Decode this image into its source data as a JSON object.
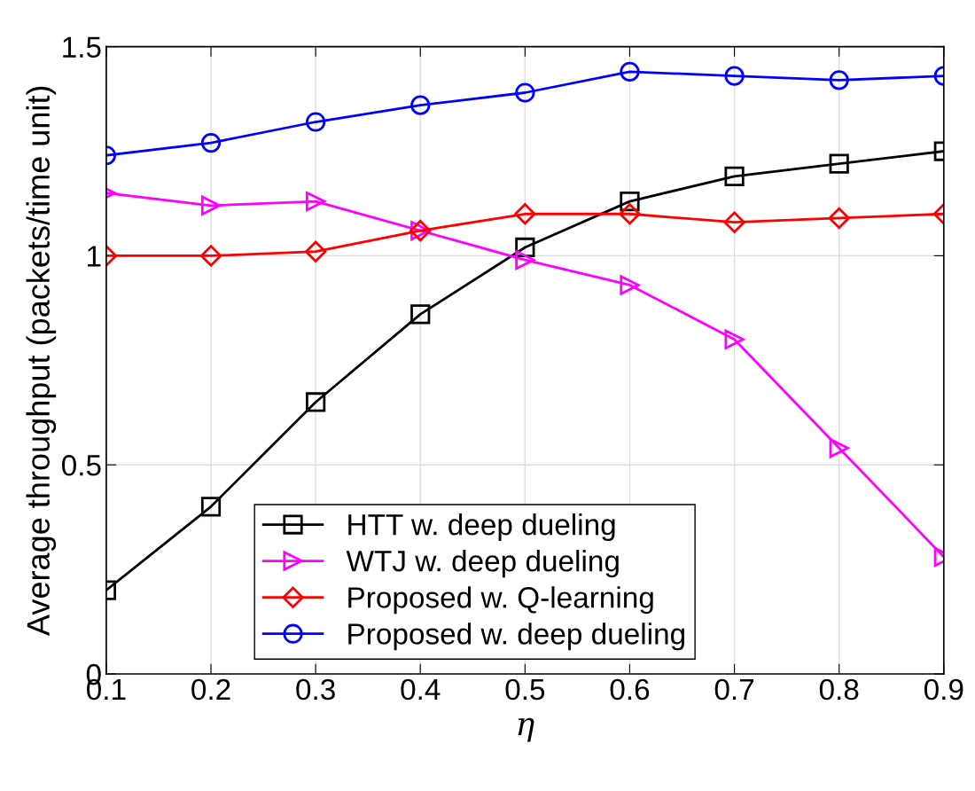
{
  "chart_data": {
    "type": "line",
    "xlabel": "η",
    "ylabel": "Average throughput (packets/time unit)",
    "x": [
      0.1,
      0.2,
      0.3,
      0.4,
      0.5,
      0.6,
      0.7,
      0.8,
      0.9
    ],
    "xlim": [
      0.1,
      0.9
    ],
    "xticks": [
      0.1,
      0.2,
      0.3,
      0.4,
      0.5,
      0.6,
      0.7,
      0.8,
      0.9
    ],
    "ylim": [
      0,
      1.5
    ],
    "yticks": [
      0,
      0.5,
      1,
      1.5
    ],
    "grid": true,
    "legend": "bottom",
    "line_style": "solid",
    "series": [
      {
        "name": "HTT w. deep dueling",
        "color": "#000000",
        "marker": "square",
        "values": [
          0.2,
          0.4,
          0.65,
          0.86,
          1.02,
          1.13,
          1.19,
          1.22,
          1.25
        ]
      },
      {
        "name": "WTJ w. deep dueling",
        "color": "#ff00ff",
        "marker": "triangle",
        "values": [
          1.15,
          1.12,
          1.13,
          1.06,
          0.99,
          0.93,
          0.8,
          0.54,
          0.28
        ]
      },
      {
        "name": "Proposed w. Q-learning",
        "color": "#ff0000",
        "marker": "diamond",
        "values": [
          1.0,
          1.0,
          1.01,
          1.06,
          1.1,
          1.1,
          1.08,
          1.09,
          1.1
        ]
      },
      {
        "name": "Proposed w. deep dueling",
        "color": "#0000ff",
        "marker": "circle",
        "values": [
          1.24,
          1.27,
          1.32,
          1.36,
          1.39,
          1.44,
          1.43,
          1.42,
          1.43
        ]
      }
    ]
  }
}
